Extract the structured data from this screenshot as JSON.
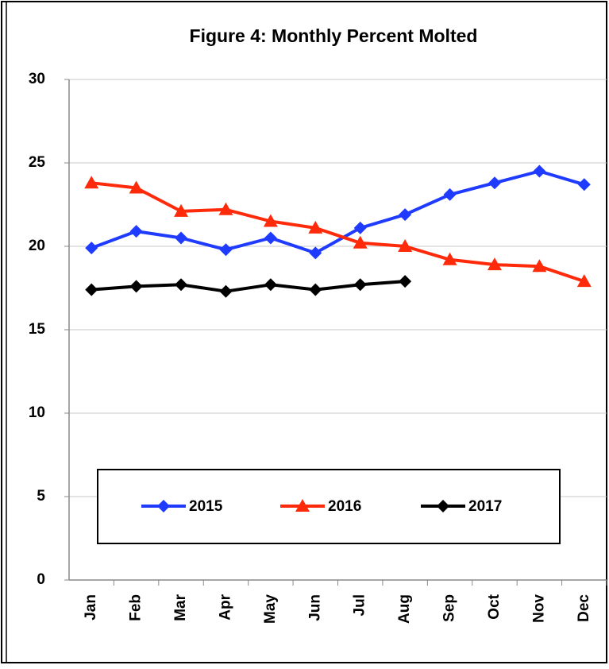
{
  "chart_data": {
    "type": "line",
    "title": "Figure 4: Monthly Percent Molted",
    "categories": [
      "Jan",
      "Feb",
      "Mar",
      "Apr",
      "May",
      "Jun",
      "Jul",
      "Aug",
      "Sep",
      "Oct",
      "Nov",
      "Dec"
    ],
    "series": [
      {
        "name": "2015",
        "color": "#1f3bff",
        "marker": "diamond",
        "values": [
          19.9,
          20.9,
          20.5,
          19.8,
          20.5,
          19.6,
          21.1,
          21.9,
          23.1,
          23.8,
          24.5,
          23.7
        ]
      },
      {
        "name": "2016",
        "color": "#ff2a0a",
        "marker": "triangle",
        "values": [
          23.8,
          23.5,
          22.1,
          22.2,
          21.5,
          21.1,
          20.2,
          20.0,
          19.2,
          18.9,
          18.8,
          17.9
        ]
      },
      {
        "name": "2017",
        "color": "#000000",
        "marker": "diamond",
        "values": [
          17.4,
          17.6,
          17.7,
          17.3,
          17.7,
          17.4,
          17.7,
          17.9,
          null,
          null,
          null,
          null
        ]
      }
    ],
    "ylim": [
      0,
      30
    ],
    "yticks": [
      0,
      5,
      10,
      15,
      20,
      25,
      30
    ],
    "grid": true,
    "legend": "bottom"
  }
}
